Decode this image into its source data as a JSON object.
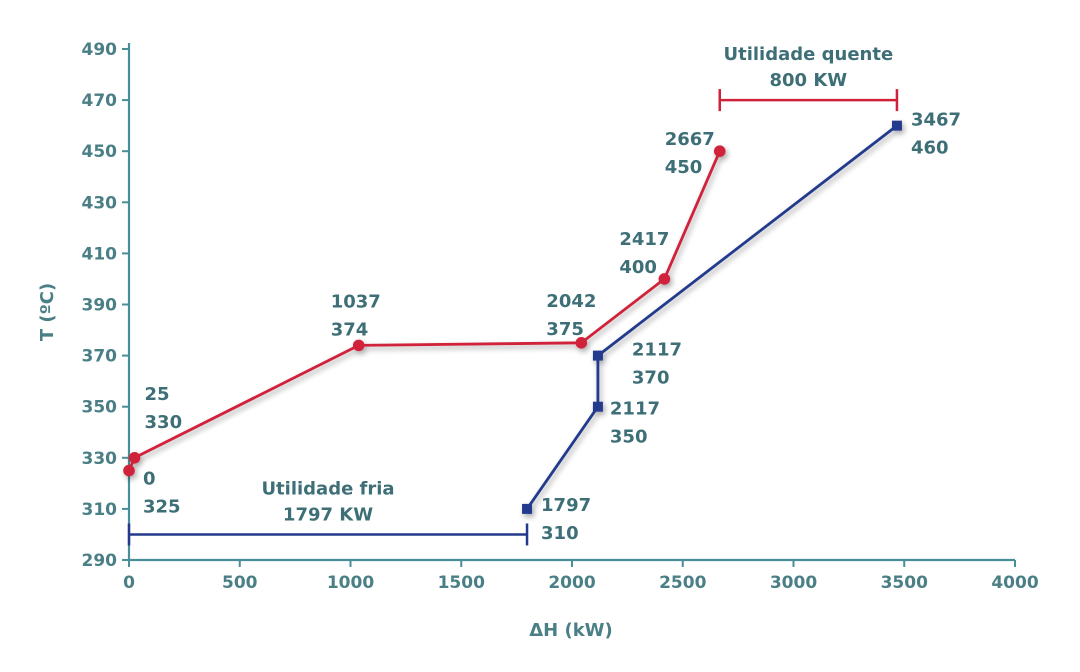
{
  "chart_data": {
    "type": "line",
    "title": "",
    "xlabel": "ΔH (kW)",
    "ylabel": "T (ºC)",
    "xlim": [
      0,
      4000
    ],
    "ylim": [
      290,
      490
    ],
    "xticks": [
      0,
      500,
      1000,
      1500,
      2000,
      2500,
      3000,
      3500,
      4000
    ],
    "yticks": [
      290,
      310,
      330,
      350,
      370,
      390,
      410,
      430,
      450,
      470,
      490
    ],
    "grid": false,
    "colors": {
      "hot": "#d0213a",
      "cold": "#233a8c",
      "axis": "#4a8f98",
      "text": "#3e6f77"
    },
    "series": [
      {
        "name": "hot",
        "marker": "circle",
        "points": [
          {
            "x": 0,
            "y": 325,
            "label": [
              "0",
              "325"
            ]
          },
          {
            "x": 25,
            "y": 330,
            "label": [
              "25",
              "330"
            ]
          },
          {
            "x": 1037,
            "y": 374,
            "label": [
              "1037",
              "374"
            ]
          },
          {
            "x": 2042,
            "y": 375,
            "label": [
              "2042",
              "375"
            ]
          },
          {
            "x": 2417,
            "y": 400,
            "label": [
              "2417",
              "400"
            ]
          },
          {
            "x": 2667,
            "y": 450,
            "label": [
              "2667",
              "450"
            ]
          }
        ]
      },
      {
        "name": "cold",
        "marker": "square",
        "points": [
          {
            "x": 1797,
            "y": 310,
            "label": [
              "1797",
              "310"
            ]
          },
          {
            "x": 2117,
            "y": 350,
            "label": [
              "2117",
              "350"
            ]
          },
          {
            "x": 2117,
            "y": 370,
            "label": [
              "2117",
              "370"
            ]
          },
          {
            "x": 3467,
            "y": 460,
            "label": [
              "3467",
              "460"
            ]
          }
        ]
      }
    ],
    "brackets": [
      {
        "name": "utilidade-quente",
        "series": "hot",
        "x_start": 2667,
        "x_end": 3467,
        "y": 470,
        "label": [
          "Utilidade quente",
          "800 KW"
        ]
      },
      {
        "name": "utilidade-fria",
        "series": "cold",
        "x_start": 0,
        "x_end": 1797,
        "y": 300,
        "label": [
          "Utilidade fria",
          "1797 KW"
        ]
      }
    ]
  }
}
